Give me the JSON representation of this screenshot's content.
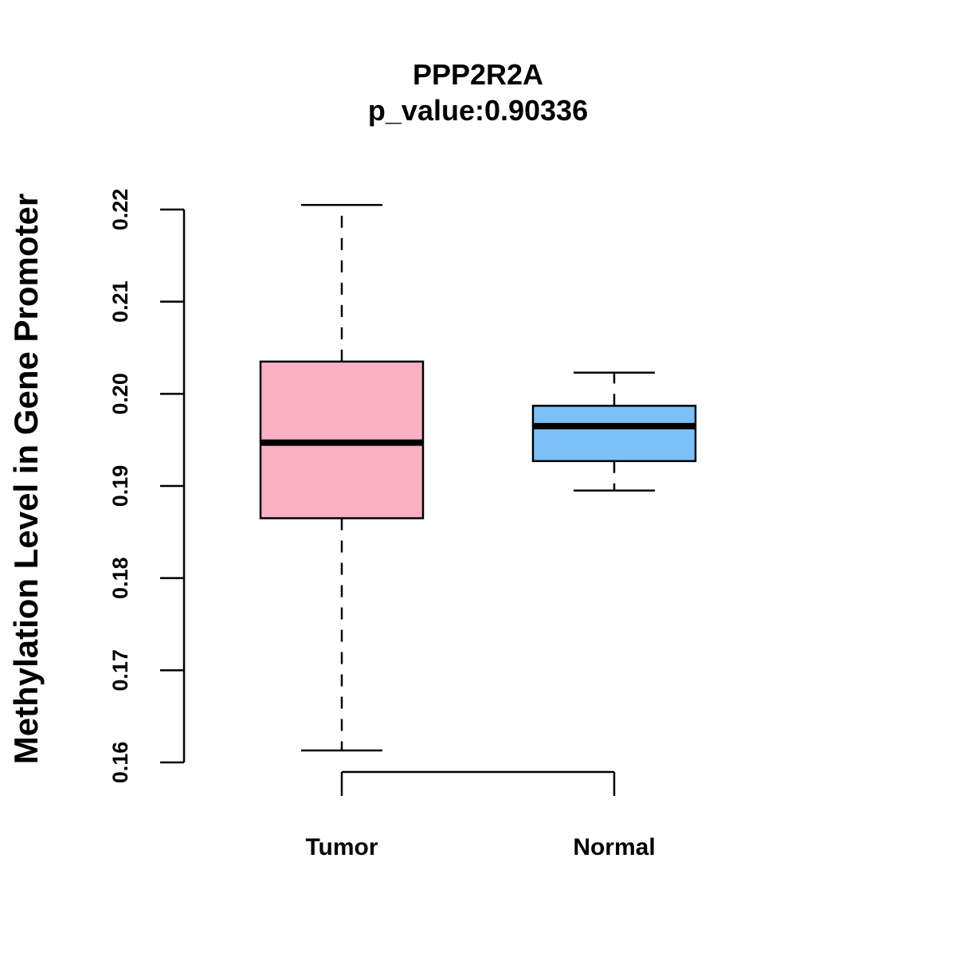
{
  "chart_data": {
    "type": "boxplot",
    "title": "PPP2R2A",
    "subtitle": "p_value:0.90336",
    "xlabel": "",
    "ylabel": "Methylation Level in Gene Promoter",
    "ylim": [
      0.16,
      0.22
    ],
    "yticks": [
      0.16,
      0.17,
      0.18,
      0.19,
      0.2,
      0.21,
      0.22
    ],
    "ytick_labels": [
      "0.16",
      "0.17",
      "0.18",
      "0.19",
      "0.20",
      "0.21",
      "0.22"
    ],
    "categories": [
      "Tumor",
      "Normal"
    ],
    "boxes": [
      {
        "name": "Tumor",
        "whisker_low": 0.1613,
        "q1": 0.1865,
        "median": 0.1947,
        "q3": 0.2035,
        "whisker_high": 0.2205,
        "color": "#FBB1C3"
      },
      {
        "name": "Normal",
        "whisker_low": 0.1895,
        "q1": 0.1927,
        "median": 0.1965,
        "q3": 0.1987,
        "whisker_high": 0.2023,
        "color": "#7BC1F8"
      }
    ],
    "grid": false,
    "legend": "none"
  }
}
